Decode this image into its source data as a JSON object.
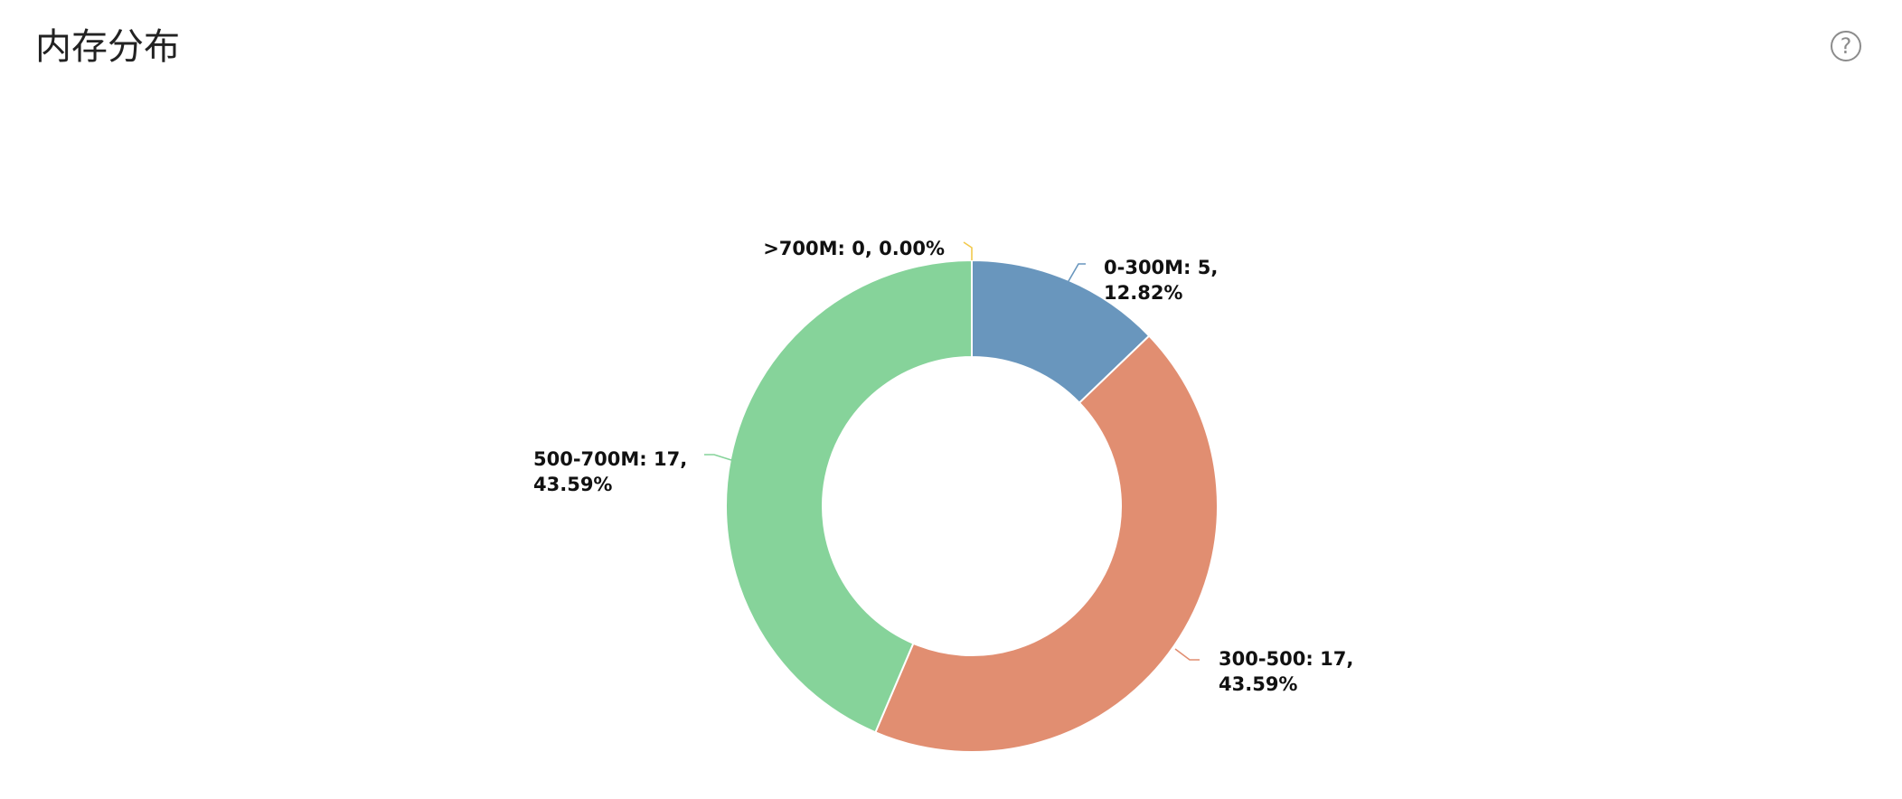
{
  "header": {
    "title": "内存分布",
    "help_icon": "question-circle-icon",
    "help_glyph": "?"
  },
  "chart_data": {
    "type": "pie",
    "donut": true,
    "start_angle": "12 o'clock",
    "direction": "clockwise",
    "slices": [
      {
        "name": "0-300M",
        "value": 5,
        "percent": "12.82%",
        "color": "#6996bd",
        "label_line1": "0-300M: 5,",
        "label_line2": "12.82%"
      },
      {
        "name": "300-500",
        "value": 17,
        "percent": "43.59%",
        "color": "#e18e71",
        "label_line1": "300-500: 17,",
        "label_line2": "43.59%"
      },
      {
        "name": "500-700M",
        "value": 17,
        "percent": "43.59%",
        "color": "#86d39a",
        "label_line1": "500-700M: 17,",
        "label_line2": "43.59%"
      },
      {
        "name": ">700M",
        "value": 0,
        "percent": "0.00%",
        "color": "#f2c94c",
        "label_line1": ">700M: 0, 0.00%",
        "label_line2": ""
      }
    ]
  }
}
